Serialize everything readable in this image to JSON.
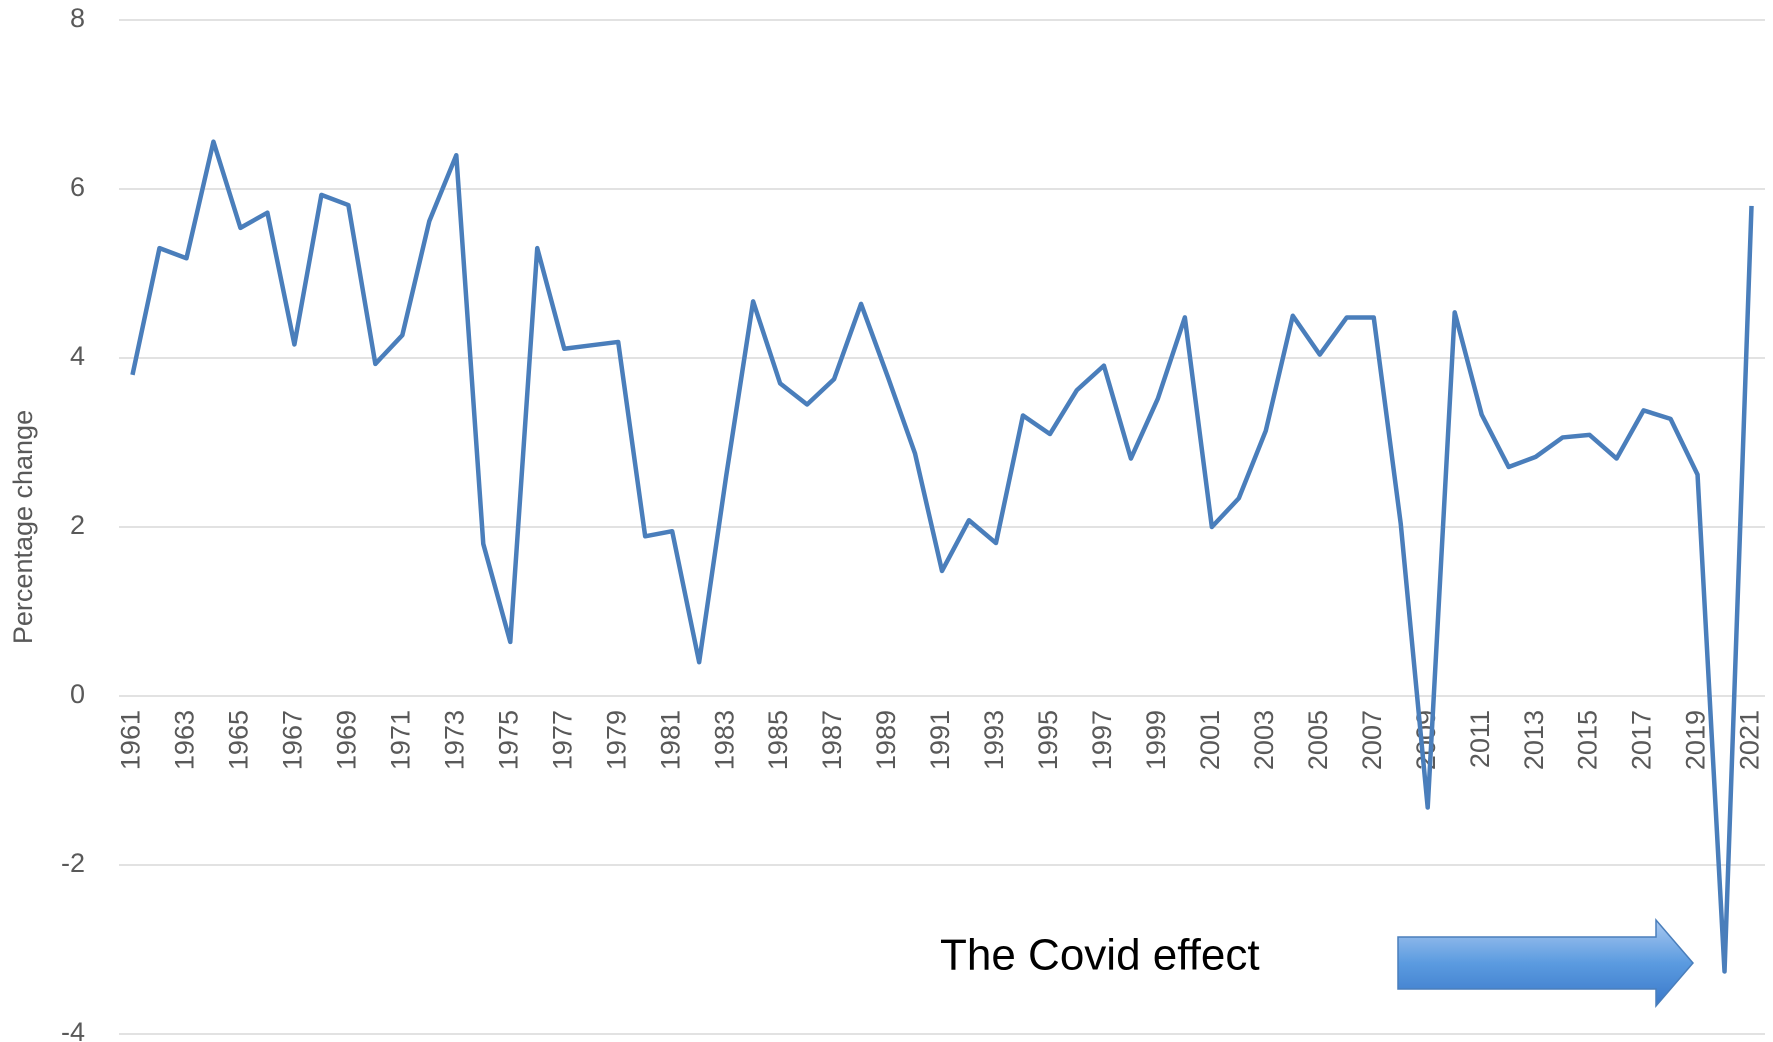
{
  "chart_data": {
    "type": "line",
    "y_label": "Percentage change",
    "annotation": "The Covid effect",
    "x": [
      1961,
      1962,
      1963,
      1964,
      1965,
      1966,
      1967,
      1968,
      1969,
      1970,
      1971,
      1972,
      1973,
      1974,
      1975,
      1976,
      1977,
      1978,
      1979,
      1980,
      1981,
      1982,
      1983,
      1984,
      1985,
      1986,
      1987,
      1988,
      1989,
      1990,
      1991,
      1992,
      1993,
      1994,
      1995,
      1996,
      1997,
      1998,
      1999,
      2000,
      2001,
      2002,
      2003,
      2004,
      2005,
      2006,
      2007,
      2008,
      2009,
      2010,
      2011,
      2012,
      2013,
      2014,
      2015,
      2016,
      2017,
      2018,
      2019,
      2020,
      2021
    ],
    "series": [
      {
        "name": "Percentage change",
        "color": "#4a7ebb",
        "values": [
          3.8,
          5.3,
          5.18,
          6.56,
          5.54,
          5.72,
          4.16,
          5.93,
          5.81,
          3.93,
          4.27,
          5.62,
          6.4,
          1.8,
          0.64,
          5.3,
          4.11,
          4.15,
          4.19,
          1.89,
          1.95,
          0.4,
          2.6,
          4.67,
          3.7,
          3.45,
          3.75,
          4.64,
          3.77,
          2.87,
          1.48,
          2.08,
          1.81,
          3.32,
          3.1,
          3.62,
          3.91,
          2.81,
          3.52,
          4.48,
          2.0,
          2.34,
          3.14,
          4.5,
          4.04,
          4.48,
          4.48,
          2.04,
          -1.32,
          4.54,
          3.33,
          2.71,
          2.83,
          3.06,
          3.09,
          2.81,
          3.38,
          3.28,
          2.62,
          -3.26,
          5.8
        ]
      }
    ],
    "xlim": [
      1960.5,
      2021.5
    ],
    "xticks": [
      1961,
      1963,
      1965,
      1967,
      1969,
      1971,
      1973,
      1975,
      1977,
      1979,
      1981,
      1983,
      1985,
      1987,
      1989,
      1991,
      1993,
      1995,
      1997,
      1999,
      2001,
      2003,
      2005,
      2007,
      2009,
      2011,
      2013,
      2015,
      2017,
      2019,
      2021
    ],
    "ylim": [
      -4,
      8
    ],
    "yticks": [
      -4,
      -2,
      0,
      2,
      4,
      6,
      8
    ],
    "grid": true
  }
}
